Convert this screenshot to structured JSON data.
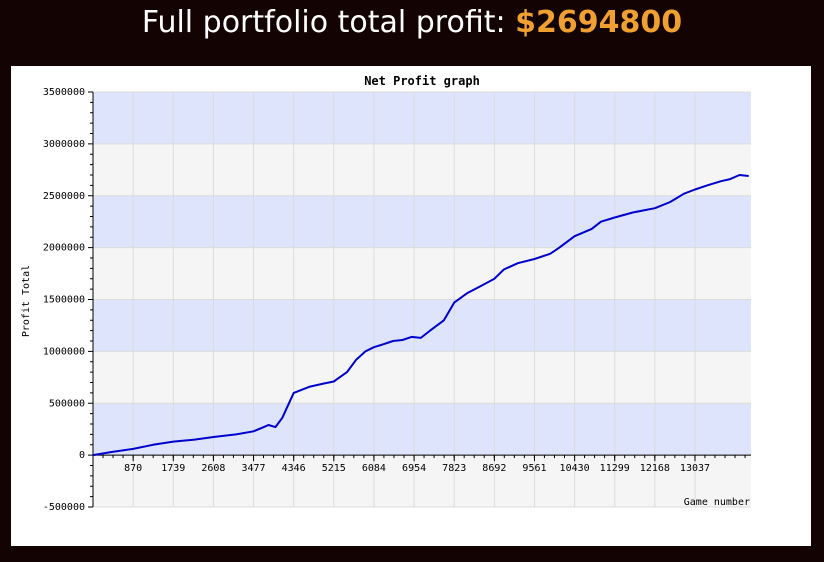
{
  "header": {
    "label": "Full portfolio total profit:",
    "value": "$2694800"
  },
  "colors": {
    "background": "#140303",
    "band_blue": "#dde4fc",
    "band_grey": "#f5f5f5",
    "line": "#0000cc",
    "accent": "#f0a030"
  },
  "chart_data": {
    "type": "line",
    "title": "Net Profit graph",
    "xlabel": "Game number",
    "ylabel": "Profit Total",
    "xlim": [
      0,
      14250
    ],
    "ylim": [
      -500000,
      3500000
    ],
    "x_ticks": [
      870,
      1739,
      2608,
      3477,
      4346,
      5215,
      6084,
      6954,
      7823,
      8692,
      9561,
      10430,
      11299,
      12168,
      13037
    ],
    "y_ticks": [
      -500000,
      0,
      500000,
      1000000,
      1500000,
      2000000,
      2500000,
      3000000,
      3500000
    ],
    "grid": true,
    "series": [
      {
        "x": [
          0,
          400,
          870,
          1300,
          1739,
          2200,
          2608,
          3100,
          3477,
          3700,
          3800,
          3950,
          4100,
          4346,
          4700,
          5000,
          5215,
          5500,
          5700,
          5900,
          6084,
          6300,
          6500,
          6700,
          6900,
          7100,
          7300,
          7600,
          7823,
          8100,
          8400,
          8692,
          8900,
          9200,
          9561,
          9900,
          10100,
          10430,
          10800,
          11000,
          11299,
          11700,
          12168,
          12500,
          12800,
          13037,
          13300,
          13600,
          13800,
          14000,
          14200
        ],
        "y": [
          0,
          30000,
          60000,
          100000,
          130000,
          150000,
          175000,
          200000,
          230000,
          270000,
          290000,
          270000,
          360000,
          600000,
          660000,
          690000,
          710000,
          800000,
          920000,
          1000000,
          1040000,
          1070000,
          1100000,
          1110000,
          1140000,
          1130000,
          1200000,
          1300000,
          1470000,
          1560000,
          1630000,
          1700000,
          1790000,
          1850000,
          1890000,
          1940000,
          2000000,
          2110000,
          2180000,
          2250000,
          2290000,
          2340000,
          2380000,
          2440000,
          2520000,
          2560000,
          2600000,
          2640000,
          2660000,
          2700000,
          2690000
        ]
      }
    ]
  }
}
